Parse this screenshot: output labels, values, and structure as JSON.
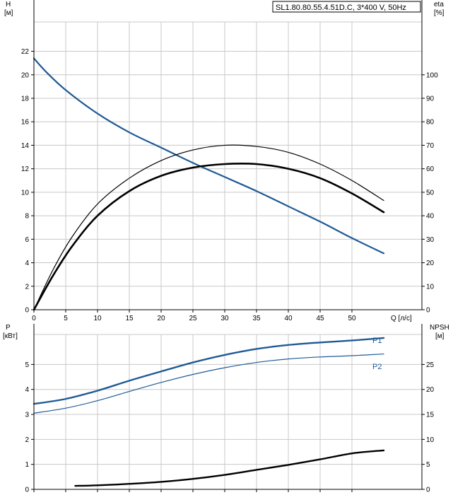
{
  "title": "SL1.80.80.55.4.51D.C, 3*400 V, 50Hz",
  "colors": {
    "blue": "#1f5a96",
    "black": "#000000",
    "grid": "#c8c8c8"
  },
  "chart_data": [
    {
      "type": "line",
      "title": "SL1.80.80.55.4.51D.C, 3*400 V, 50Hz",
      "xlabel": "Q [л/с]",
      "ylabel_left": [
        "H",
        "[м]"
      ],
      "ylabel_right": [
        "eta",
        "[%]"
      ],
      "xlim": [
        0,
        61
      ],
      "ylim_left": [
        0,
        24.5
      ],
      "ylim_right": [
        0,
        122.5
      ],
      "xticks": [
        0,
        5,
        10,
        15,
        20,
        25,
        30,
        35,
        40,
        45,
        50
      ],
      "yticks_left": [
        0,
        2,
        4,
        6,
        8,
        10,
        12,
        14,
        16,
        18,
        20,
        22
      ],
      "yticks_right": [
        0,
        10,
        20,
        30,
        40,
        50,
        60,
        70,
        80,
        90,
        100
      ],
      "grid": true,
      "series": [
        {
          "axis": "left",
          "color": "#1f5a96",
          "width": 2.2,
          "x": [
            0,
            2,
            5,
            10,
            15,
            20,
            25,
            30,
            35,
            40,
            45,
            50,
            55
          ],
          "y": [
            21.4,
            20.2,
            18.7,
            16.7,
            15.1,
            13.8,
            12.5,
            11.3,
            10.1,
            8.8,
            7.5,
            6.1,
            4.8
          ]
        },
        {
          "axis": "right",
          "color": "#000000",
          "width": 1.2,
          "x": [
            0,
            3,
            6,
            10,
            15,
            20,
            25,
            30,
            35,
            40,
            45,
            50,
            55
          ],
          "y": [
            0,
            17,
            31,
            45,
            56,
            63.5,
            68,
            70,
            69.5,
            67,
            62,
            55,
            46.5
          ]
        },
        {
          "axis": "right",
          "color": "#000000",
          "width": 2.6,
          "x": [
            0,
            3,
            6,
            10,
            15,
            20,
            25,
            30,
            35,
            40,
            45,
            50,
            55
          ],
          "y": [
            0,
            14.5,
            27,
            40,
            50.5,
            57,
            60.5,
            62,
            62,
            60,
            56,
            49.5,
            41.5
          ]
        }
      ]
    },
    {
      "type": "line",
      "xlabel": "",
      "ylabel_left": [
        "P",
        "[кВт]"
      ],
      "ylabel_right": [
        "NPSH",
        "[м]"
      ],
      "xlim": [
        0,
        61
      ],
      "ylim_left": [
        0,
        6.2
      ],
      "ylim_right": [
        0,
        31
      ],
      "xticks": [
        0,
        5,
        10,
        15,
        20,
        25,
        30,
        35,
        40,
        45,
        50
      ],
      "yticks_left": [
        0,
        1,
        2,
        3,
        4,
        5
      ],
      "yticks_right": [
        0,
        5,
        10,
        15,
        20,
        25
      ],
      "grid": true,
      "series": [
        {
          "name": "P1",
          "axis": "left",
          "color": "#1f5a96",
          "width": 2.4,
          "x": [
            0,
            5,
            10,
            15,
            20,
            25,
            30,
            35,
            40,
            45,
            50,
            55
          ],
          "y": [
            3.42,
            3.62,
            3.95,
            4.35,
            4.72,
            5.08,
            5.38,
            5.62,
            5.78,
            5.88,
            5.96,
            6.06
          ]
        },
        {
          "name": "P2",
          "axis": "left",
          "color": "#1f5a96",
          "width": 1.2,
          "x": [
            0,
            5,
            10,
            15,
            20,
            25,
            30,
            35,
            40,
            45,
            50,
            55
          ],
          "y": [
            3.05,
            3.25,
            3.55,
            3.92,
            4.28,
            4.6,
            4.87,
            5.08,
            5.22,
            5.3,
            5.35,
            5.42
          ]
        },
        {
          "axis": "right",
          "color": "#000000",
          "width": 2.4,
          "x": [
            6.5,
            10,
            15,
            20,
            25,
            30,
            35,
            40,
            45,
            50,
            55
          ],
          "y": [
            0.7,
            0.8,
            1.1,
            1.5,
            2.1,
            2.9,
            3.9,
            4.9,
            6.0,
            7.2,
            7.8
          ]
        }
      ]
    }
  ]
}
